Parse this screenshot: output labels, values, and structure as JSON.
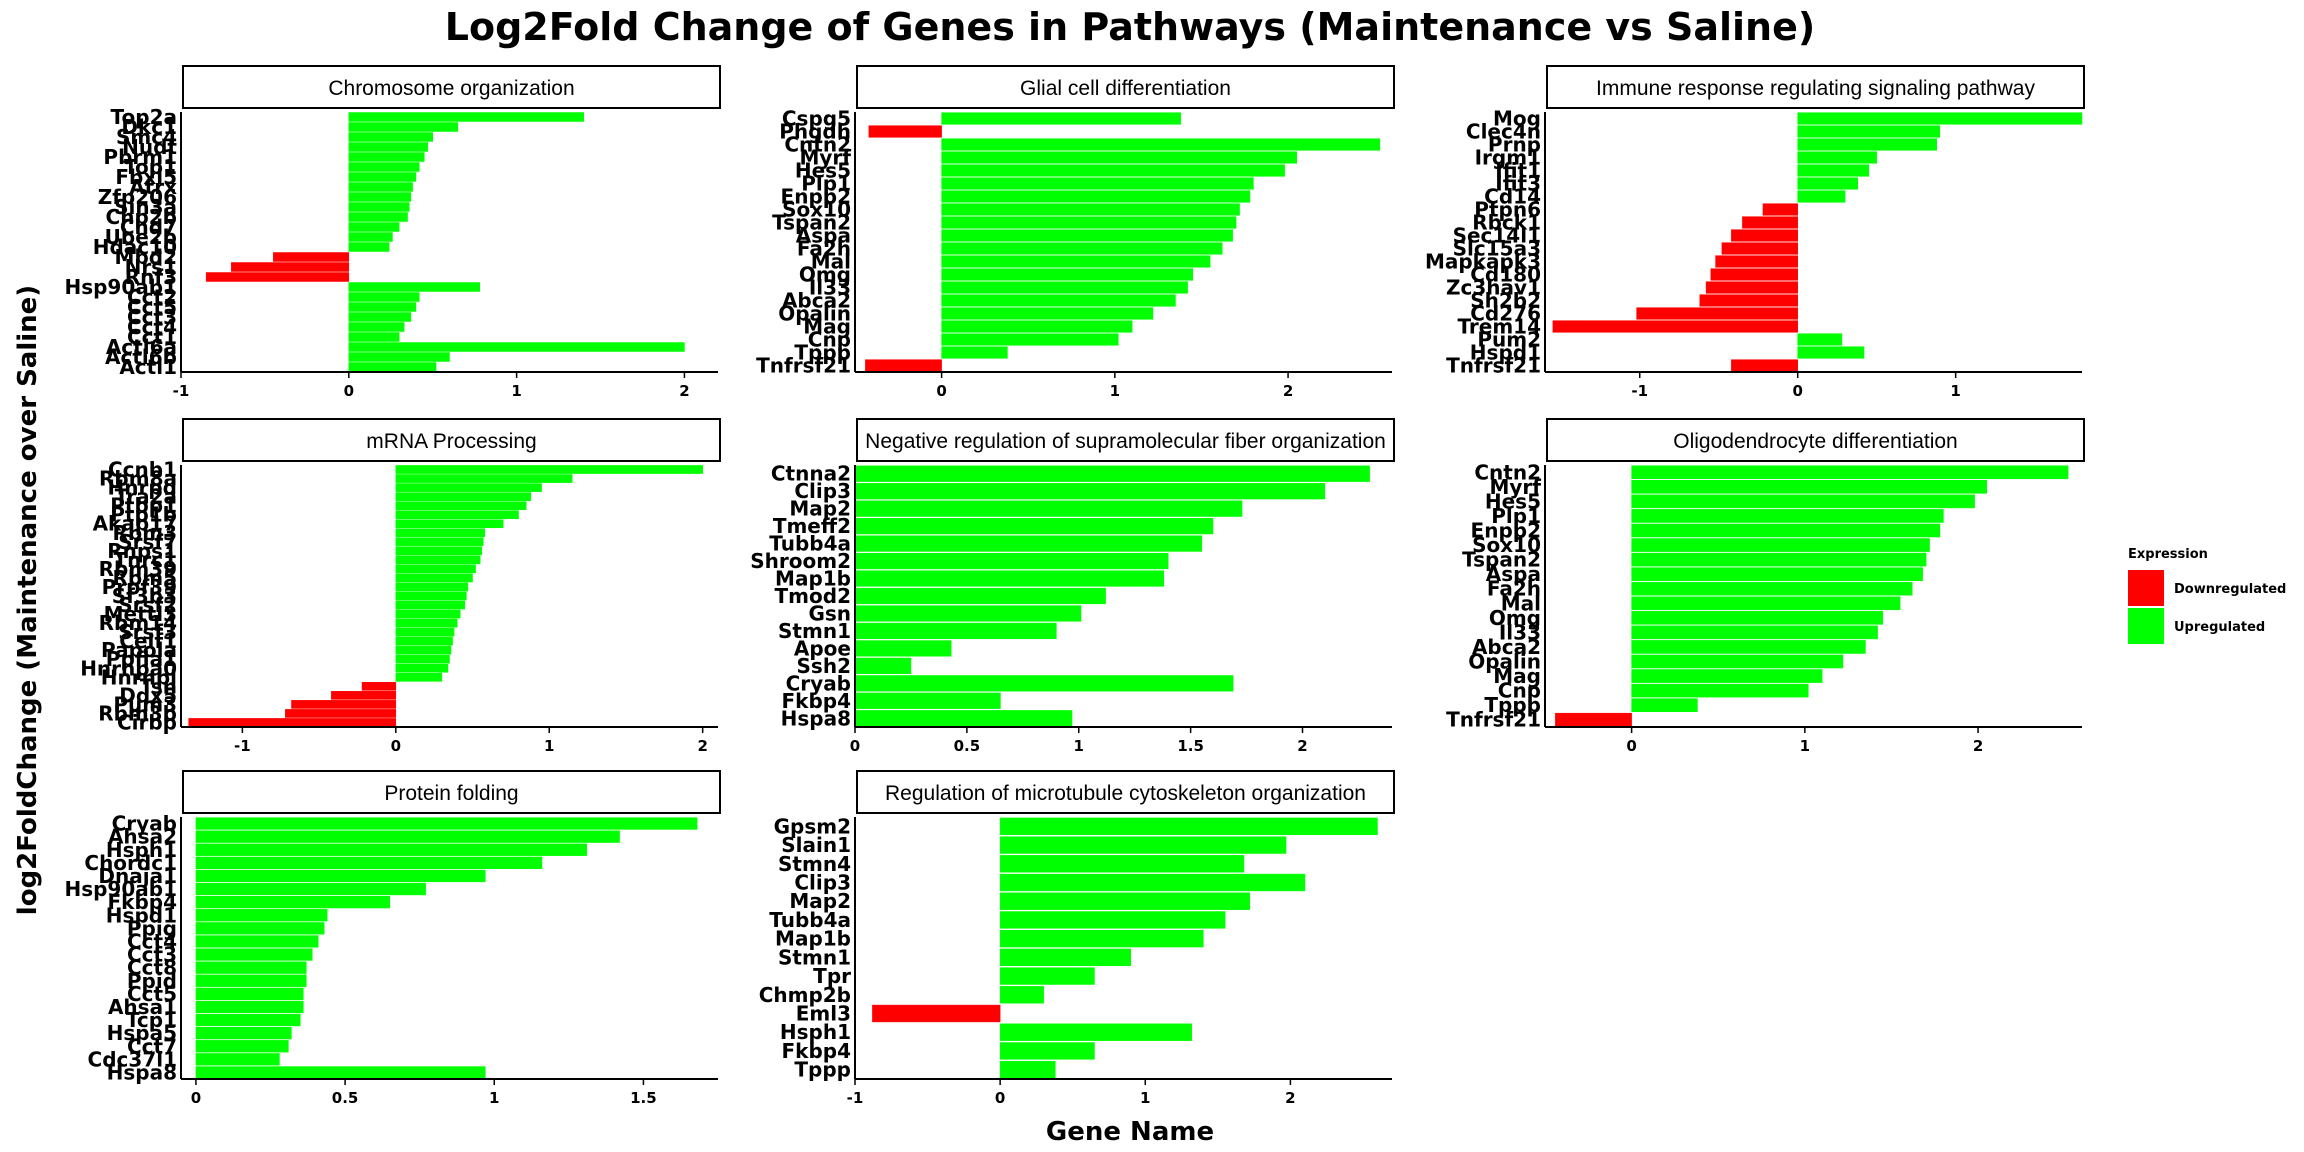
{
  "figure": {
    "title": "Log2Fold Change of Genes in Pathways  (Maintenance vs Saline)",
    "xlabel": "Gene Name",
    "ylabel": "log2FoldChange (Maintenance over Saline)"
  },
  "legend": {
    "title": "Expression",
    "placement": "right",
    "items": [
      {
        "label": "Downregulated",
        "color": "#ff0000"
      },
      {
        "label": "Upregulated",
        "color": "#00ff00"
      }
    ]
  },
  "colors": {
    "up": "#00ff00",
    "down": "#ff0000",
    "axis": "#000000",
    "strip_bg": "#ffffff",
    "strip_border": "#000000"
  },
  "chart_data": [
    {
      "type": "bar",
      "orientation": "horizontal",
      "title": "Chromosome organization",
      "xlim": [
        -1,
        2.2
      ],
      "xticks": [
        -1,
        0,
        1,
        2
      ],
      "categories": [
        "Top2a",
        "Dkc1",
        "Smc4",
        "Nudt",
        "Pbrm1",
        "Top1",
        "Fbxl5",
        "Atrx",
        "Zfp206",
        "Sin3a",
        "Chp2b",
        "Chd7",
        "Ube2b",
        "Hdac10",
        "Mbd2",
        "Nrs1",
        "Rnf3",
        "Hsp90ab1",
        "Cct2",
        "Cct5",
        "Cct3",
        "Cct4",
        "Cct1",
        "Actl6a",
        "Actl6b",
        "Actl1"
      ],
      "values": [
        1.4,
        0.65,
        0.5,
        0.47,
        0.45,
        0.42,
        0.4,
        0.38,
        0.37,
        0.36,
        0.35,
        0.3,
        0.26,
        0.24,
        -0.45,
        -0.7,
        -0.85,
        0.78,
        0.42,
        0.4,
        0.37,
        0.33,
        0.3,
        2.0,
        0.6,
        0.52
      ]
    },
    {
      "type": "bar",
      "orientation": "horizontal",
      "title": "Glial cell differentiation",
      "xlim": [
        -0.5,
        2.6
      ],
      "xticks": [
        0,
        1,
        2
      ],
      "categories": [
        "Cspg5",
        "Phgdh",
        "Cntn2",
        "Myrf",
        "Hes5",
        "Plp1",
        "Enpp2",
        "Sox10",
        "Tspan2",
        "Aspa",
        "Fa2h",
        "Mal",
        "Omg",
        "Il33",
        "Abca2",
        "Opalin",
        "Mag",
        "Cnp",
        "Tppp",
        "Tnfrsf21"
      ],
      "values": [
        1.38,
        -0.42,
        2.53,
        2.05,
        1.98,
        1.8,
        1.78,
        1.72,
        1.7,
        1.68,
        1.62,
        1.55,
        1.45,
        1.42,
        1.35,
        1.22,
        1.1,
        1.02,
        0.38,
        -0.44
      ]
    },
    {
      "type": "bar",
      "orientation": "horizontal",
      "title": "Immune response regulating signaling pathway",
      "xlim": [
        -1.6,
        1.8
      ],
      "xticks": [
        -1,
        0,
        1
      ],
      "categories": [
        "Mog",
        "Clec4n",
        "Prnp",
        "Irgm1",
        "Ifit1",
        "Ifit3",
        "Cd14",
        "Ptpn6",
        "Rbck1",
        "Sec14l1",
        "Slc15a3",
        "Mapkapk3",
        "Cd180",
        "Zc3hav1",
        "Sh2b2",
        "Cd276",
        "Trem14",
        "Pum2",
        "Hspd1",
        "Tnfrsf21"
      ],
      "values": [
        1.8,
        0.9,
        0.88,
        0.5,
        0.45,
        0.38,
        0.3,
        -0.22,
        -0.35,
        -0.42,
        -0.48,
        -0.52,
        -0.55,
        -0.58,
        -0.62,
        -1.02,
        -1.55,
        0.28,
        0.42,
        -0.42
      ]
    },
    {
      "type": "bar",
      "orientation": "horizontal",
      "title": "mRNA Processing",
      "xlim": [
        -1.4,
        2.1
      ],
      "xticks": [
        -1,
        0,
        1,
        2
      ],
      "categories": [
        "Ccnb1",
        "Rbm8a",
        "Hnrpd",
        "Tra2a",
        "Ptbp1",
        "Ptp1b",
        "Akap17",
        "Rbm3",
        "Srsf7",
        "Rnps1",
        "Tnrc1",
        "Rbm39",
        "Rbm5",
        "Prpf39",
        "Sf3b3",
        "Srsf2",
        "Mettl3",
        "Rbm14",
        "Srsf3",
        "Celf1",
        "Papola",
        "Ppfia1",
        "Hnrnpa0",
        "Hnrnpl",
        "Tsn",
        "Ddx5",
        "Pum3",
        "Rbm3b",
        "Cirbp"
      ],
      "values": [
        2.0,
        1.15,
        0.95,
        0.88,
        0.85,
        0.8,
        0.7,
        0.58,
        0.57,
        0.56,
        0.55,
        0.52,
        0.5,
        0.47,
        0.46,
        0.45,
        0.42,
        0.4,
        0.38,
        0.37,
        0.36,
        0.35,
        0.34,
        0.3,
        -0.22,
        -0.42,
        -0.68,
        -0.72,
        -1.35
      ]
    },
    {
      "type": "bar",
      "orientation": "horizontal",
      "title": "Negative regulation of supramolecular fiber organization",
      "xlim": [
        0,
        2.4
      ],
      "xticks": [
        0,
        0.5,
        1.0,
        1.5,
        2.0
      ],
      "categories": [
        "Ctnna2",
        "Clip3",
        "Map2",
        "Tmeff2",
        "Tubb4a",
        "Shroom2",
        "Map1b",
        "Tmod2",
        "Gsn",
        "Stmn1",
        "Apoe",
        "Ssh2",
        "Cryab",
        "Fkbp4",
        "Hspa8"
      ],
      "values": [
        2.3,
        2.1,
        1.73,
        1.6,
        1.55,
        1.4,
        1.38,
        1.12,
        1.01,
        0.9,
        0.43,
        0.25,
        1.69,
        0.65,
        0.97
      ]
    },
    {
      "type": "bar",
      "orientation": "horizontal",
      "title": "Oligodendrocyte differentiation",
      "xlim": [
        -0.5,
        2.6
      ],
      "xticks": [
        0,
        1,
        2
      ],
      "categories": [
        "Cntn2",
        "Myrf",
        "Hes5",
        "Plp1",
        "Enpp2",
        "Sox10",
        "Tspan2",
        "Aspa",
        "Fa2h",
        "Mal",
        "Omg",
        "Il33",
        "Abca2",
        "Opalin",
        "Mag",
        "Cnp",
        "Tppp",
        "Tnfrsf21"
      ],
      "values": [
        2.52,
        2.05,
        1.98,
        1.8,
        1.78,
        1.72,
        1.7,
        1.68,
        1.62,
        1.55,
        1.45,
        1.42,
        1.35,
        1.22,
        1.1,
        1.02,
        0.38,
        -0.44
      ]
    },
    {
      "type": "bar",
      "orientation": "horizontal",
      "title": "Protein folding",
      "xlim": [
        -0.05,
        1.75
      ],
      "xticks": [
        0,
        0.5,
        1.0,
        1.5
      ],
      "categories": [
        "Cryab",
        "Ahsa2",
        "Hsph1",
        "Chordc1",
        "Dnaja1",
        "Hsp90ab1",
        "Fkbp4",
        "Hspd1",
        "Ppig",
        "Cct4",
        "Cct3",
        "Cct8",
        "Ppid",
        "Cct5",
        "Ahsa1",
        "Tcp1",
        "Hspa5",
        "Cct7",
        "Cdc37l1",
        "Hspa8"
      ],
      "values": [
        1.68,
        1.42,
        1.31,
        1.16,
        0.97,
        0.77,
        0.65,
        0.44,
        0.43,
        0.41,
        0.39,
        0.37,
        0.37,
        0.36,
        0.36,
        0.35,
        0.32,
        0.31,
        0.28,
        0.97
      ]
    },
    {
      "type": "bar",
      "orientation": "horizontal",
      "title": "Regulation of microtubule cytoskeleton organization",
      "xlim": [
        -1,
        2.7
      ],
      "xticks": [
        -1,
        0,
        1,
        2
      ],
      "categories": [
        "Gpsm2",
        "Slain1",
        "Stmn4",
        "Clip3",
        "Map2",
        "Tubb4a",
        "Map1b",
        "Stmn1",
        "Tpr",
        "Chmp2b",
        "Eml3",
        "Hsph1",
        "Fkbp4",
        "Tppp"
      ],
      "values": [
        2.6,
        1.97,
        1.68,
        2.1,
        1.72,
        1.55,
        1.4,
        0.9,
        0.65,
        0.3,
        -0.88,
        1.32,
        0.65,
        0.38
      ]
    }
  ]
}
